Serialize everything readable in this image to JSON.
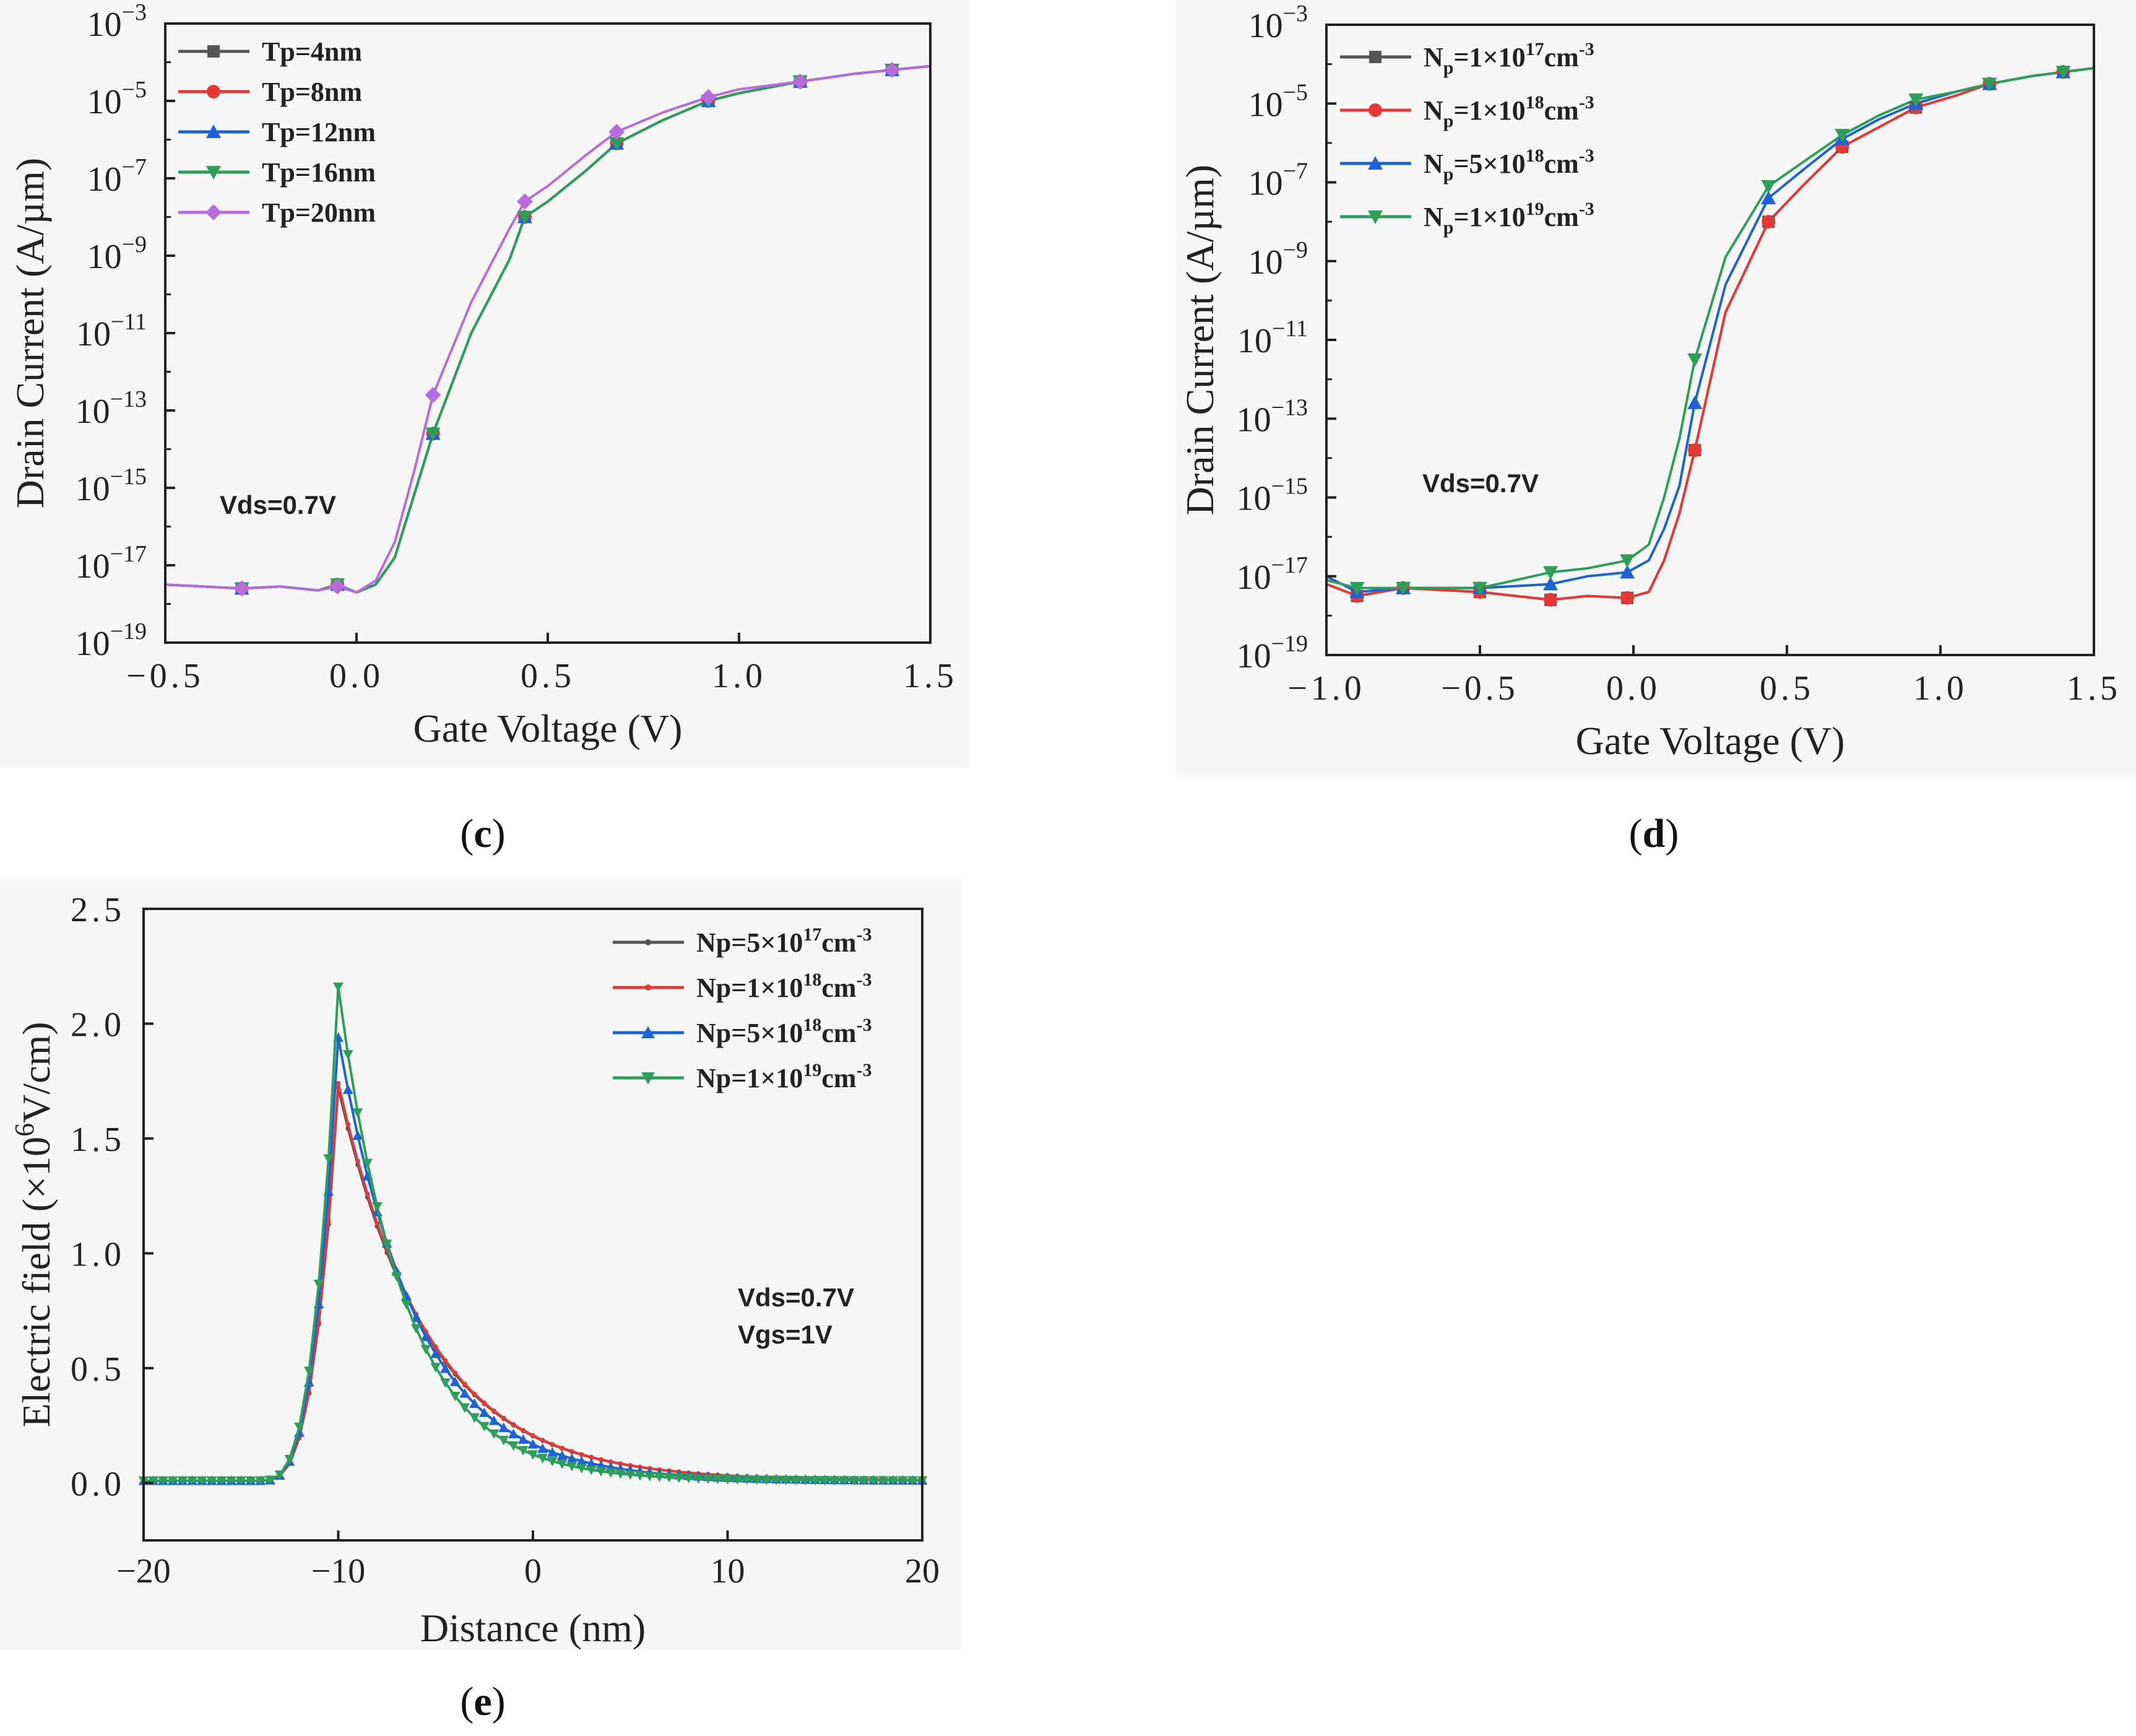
{
  "chart_data": [
    {
      "panel": "(c)",
      "panel_letter": "c",
      "type": "line",
      "yscale": "log",
      "xlabel": "Gate Voltage (V)",
      "ylabel": "Drain Current (A/µm)",
      "xlim": [
        -0.5,
        1.5
      ],
      "xticks": [
        "−0.5",
        "0.0",
        "0.5",
        "1.0",
        "1.5"
      ],
      "xtick_values": [
        -0.5,
        0.0,
        0.5,
        1.0,
        1.5
      ],
      "ylim_exp": [
        -19,
        -3
      ],
      "ytick_exponents": [
        "-19",
        "-17",
        "-15",
        "-13",
        "-11",
        "-9",
        "-7",
        "-5",
        "-3"
      ],
      "annotation": "Vds=0.7V",
      "legend_position": "top-left",
      "series": [
        {
          "name": "Tp=4nm",
          "color": "#555555",
          "marker": "square",
          "x": [
            -0.5,
            -0.4,
            -0.3,
            -0.2,
            -0.1,
            -0.05,
            0.0,
            0.05,
            0.1,
            0.15,
            0.2,
            0.3,
            0.4,
            0.44,
            0.5,
            0.6,
            0.68,
            0.8,
            0.92,
            1.0,
            1.16,
            1.3,
            1.4,
            1.5
          ],
          "y": [
            -17.5,
            -17.55,
            -17.6,
            -17.55,
            -17.65,
            -17.5,
            -17.7,
            -17.5,
            -16.8,
            -15.2,
            -13.6,
            -11.0,
            -9.1,
            -8.0,
            -7.6,
            -6.8,
            -6.1,
            -5.5,
            -5.0,
            -4.8,
            -4.5,
            -4.3,
            -4.2,
            -4.1
          ]
        },
        {
          "name": "Tp=8nm",
          "color": "#e53935",
          "marker": "circle",
          "x": [
            -0.5,
            -0.4,
            -0.3,
            -0.2,
            -0.1,
            -0.05,
            0.0,
            0.05,
            0.1,
            0.15,
            0.2,
            0.3,
            0.4,
            0.44,
            0.5,
            0.6,
            0.68,
            0.8,
            0.92,
            1.0,
            1.16,
            1.3,
            1.4,
            1.5
          ],
          "y": [
            -17.5,
            -17.55,
            -17.6,
            -17.55,
            -17.65,
            -17.5,
            -17.7,
            -17.5,
            -16.8,
            -15.2,
            -13.6,
            -11.0,
            -9.1,
            -8.0,
            -7.6,
            -6.8,
            -6.1,
            -5.5,
            -5.0,
            -4.8,
            -4.5,
            -4.3,
            -4.2,
            -4.1
          ]
        },
        {
          "name": "Tp=12nm",
          "color": "#1e63d6",
          "marker": "triangle-up",
          "x": [
            -0.5,
            -0.4,
            -0.3,
            -0.2,
            -0.1,
            -0.05,
            0.0,
            0.05,
            0.1,
            0.15,
            0.2,
            0.3,
            0.4,
            0.44,
            0.5,
            0.6,
            0.68,
            0.8,
            0.92,
            1.0,
            1.16,
            1.3,
            1.4,
            1.5
          ],
          "y": [
            -17.5,
            -17.55,
            -17.6,
            -17.55,
            -17.65,
            -17.5,
            -17.7,
            -17.5,
            -16.8,
            -15.2,
            -13.6,
            -11.0,
            -9.1,
            -8.0,
            -7.6,
            -6.8,
            -6.1,
            -5.5,
            -5.0,
            -4.8,
            -4.5,
            -4.3,
            -4.2,
            -4.1
          ]
        },
        {
          "name": "Tp=16nm",
          "color": "#2e9e5b",
          "marker": "triangle-down",
          "x": [
            -0.5,
            -0.4,
            -0.3,
            -0.2,
            -0.1,
            -0.05,
            0.0,
            0.05,
            0.1,
            0.15,
            0.2,
            0.3,
            0.4,
            0.44,
            0.5,
            0.6,
            0.68,
            0.8,
            0.92,
            1.0,
            1.16,
            1.3,
            1.4,
            1.5
          ],
          "y": [
            -17.5,
            -17.55,
            -17.6,
            -17.55,
            -17.65,
            -17.5,
            -17.7,
            -17.5,
            -16.8,
            -15.2,
            -13.6,
            -11.0,
            -9.1,
            -8.0,
            -7.6,
            -6.8,
            -6.1,
            -5.5,
            -5.0,
            -4.8,
            -4.5,
            -4.3,
            -4.2,
            -4.1
          ]
        },
        {
          "name": "Tp=20nm",
          "color": "#b86bdc",
          "marker": "diamond",
          "x": [
            -0.5,
            -0.4,
            -0.3,
            -0.2,
            -0.1,
            -0.05,
            0.0,
            0.05,
            0.1,
            0.15,
            0.2,
            0.3,
            0.4,
            0.44,
            0.5,
            0.6,
            0.68,
            0.8,
            0.92,
            1.0,
            1.16,
            1.3,
            1.4,
            1.5
          ],
          "y": [
            -17.5,
            -17.55,
            -17.6,
            -17.55,
            -17.65,
            -17.55,
            -17.7,
            -17.4,
            -16.4,
            -14.6,
            -12.6,
            -10.2,
            -8.3,
            -7.6,
            -7.2,
            -6.4,
            -5.8,
            -5.3,
            -4.9,
            -4.7,
            -4.5,
            -4.3,
            -4.2,
            -4.1
          ]
        }
      ]
    },
    {
      "panel": "(d)",
      "panel_letter": "d",
      "type": "line",
      "yscale": "log",
      "xlabel": "Gate Voltage (V)",
      "ylabel": "Drain Current (A/µm)",
      "xlim": [
        -1.0,
        1.5
      ],
      "xticks": [
        "−1.0",
        "−0.5",
        "0.0",
        "0.5",
        "1.0",
        "1.5"
      ],
      "xtick_values": [
        -1.0,
        -0.5,
        0.0,
        0.5,
        1.0,
        1.5
      ],
      "ylim_exp": [
        -19,
        -3
      ],
      "ytick_exponents": [
        "-19",
        "-17",
        "-15",
        "-13",
        "-11",
        "-9",
        "-7",
        "-5",
        "-3"
      ],
      "annotation": "Vds=0.7V",
      "legend_position": "top-left",
      "series": [
        {
          "name": "N",
          "sub": "p",
          "mid": "=1×10",
          "exp": "17",
          "tail": "cm",
          "tailexp": "-3",
          "color": "#555555",
          "marker": "square",
          "x": [
            -1.0,
            -0.9,
            -0.75,
            -0.5,
            -0.27,
            -0.15,
            -0.02,
            0.05,
            0.1,
            0.15,
            0.2,
            0.3,
            0.44,
            0.55,
            0.68,
            0.8,
            0.92,
            1.05,
            1.16,
            1.3,
            1.4,
            1.5
          ],
          "y": [
            -17.2,
            -17.5,
            -17.3,
            -17.4,
            -17.6,
            -17.5,
            -17.55,
            -17.4,
            -16.6,
            -15.4,
            -13.8,
            -10.3,
            -8.0,
            -7.1,
            -6.1,
            -5.6,
            -5.1,
            -4.8,
            -4.5,
            -4.3,
            -4.2,
            -4.1
          ]
        },
        {
          "name": "N",
          "sub": "p",
          "mid": "=1×10",
          "exp": "18",
          "tail": "cm",
          "tailexp": "-3",
          "color": "#e53935",
          "marker": "circle",
          "x": [
            -1.0,
            -0.9,
            -0.75,
            -0.5,
            -0.27,
            -0.15,
            -0.02,
            0.05,
            0.1,
            0.15,
            0.2,
            0.3,
            0.44,
            0.55,
            0.68,
            0.8,
            0.92,
            1.05,
            1.16,
            1.3,
            1.4,
            1.5
          ],
          "y": [
            -17.2,
            -17.5,
            -17.3,
            -17.4,
            -17.6,
            -17.5,
            -17.55,
            -17.4,
            -16.6,
            -15.4,
            -13.8,
            -10.3,
            -8.0,
            -7.1,
            -6.1,
            -5.6,
            -5.1,
            -4.8,
            -4.5,
            -4.3,
            -4.2,
            -4.1
          ]
        },
        {
          "name": "N",
          "sub": "p",
          "mid": "=5×10",
          "exp": "18",
          "tail": "cm",
          "tailexp": "-3",
          "color": "#1e63d6",
          "marker": "triangle-up",
          "x": [
            -1.0,
            -0.9,
            -0.75,
            -0.5,
            -0.27,
            -0.15,
            -0.02,
            0.05,
            0.1,
            0.15,
            0.2,
            0.3,
            0.44,
            0.55,
            0.68,
            0.8,
            0.92,
            1.05,
            1.16,
            1.3,
            1.4,
            1.5
          ],
          "y": [
            -17.0,
            -17.4,
            -17.3,
            -17.3,
            -17.2,
            -17.0,
            -16.9,
            -16.6,
            -15.8,
            -14.7,
            -12.6,
            -9.6,
            -7.4,
            -6.7,
            -5.9,
            -5.4,
            -5.0,
            -4.7,
            -4.5,
            -4.3,
            -4.2,
            -4.1
          ]
        },
        {
          "name": "N",
          "sub": "p",
          "mid": "=1×10",
          "exp": "19",
          "tail": "cm",
          "tailexp": "-3",
          "color": "#2e9e5b",
          "marker": "triangle-down",
          "x": [
            -1.0,
            -0.9,
            -0.75,
            -0.5,
            -0.27,
            -0.15,
            -0.02,
            0.05,
            0.1,
            0.15,
            0.2,
            0.3,
            0.44,
            0.55,
            0.68,
            0.8,
            0.92,
            1.05,
            1.16,
            1.3,
            1.4,
            1.5
          ],
          "y": [
            -17.1,
            -17.3,
            -17.3,
            -17.3,
            -16.9,
            -16.8,
            -16.6,
            -16.2,
            -15.0,
            -13.5,
            -11.5,
            -8.9,
            -7.1,
            -6.5,
            -5.8,
            -5.3,
            -4.9,
            -4.7,
            -4.5,
            -4.3,
            -4.2,
            -4.1
          ]
        }
      ]
    },
    {
      "panel": "(e)",
      "panel_letter": "e",
      "type": "line",
      "yscale": "linear",
      "xlabel": "Distance (nm)",
      "ylabel_parts": [
        "Electric field (×10",
        "6",
        "V/cm)"
      ],
      "xlim": [
        -20,
        20
      ],
      "xticks": [
        "−20",
        "−10",
        "0",
        "10",
        "20"
      ],
      "xtick_values": [
        -20,
        -10,
        0,
        10,
        20
      ],
      "ylim": [
        -0.25,
        2.5
      ],
      "yticks": [
        "0.0",
        "0.5",
        "1.0",
        "1.5",
        "2.0",
        "2.5"
      ],
      "ytick_values": [
        0.0,
        0.5,
        1.0,
        1.5,
        2.0,
        2.5
      ],
      "annotation": [
        "Vds=0.7V",
        "Vgs=1V"
      ],
      "legend_position": "top-right",
      "series": [
        {
          "name": "Np=5×10",
          "exp": "17",
          "tail": "cm",
          "tailexp": "-3",
          "color": "#555555",
          "marker": "dot",
          "peak": 1.72,
          "decay": 4.6
        },
        {
          "name": "Np=1×10",
          "exp": "18",
          "tail": "cm",
          "tailexp": "-3",
          "color": "#e53935",
          "marker": "dot",
          "peak": 1.74,
          "decay": 4.6
        },
        {
          "name": "Np=5×10",
          "exp": "18",
          "tail": "cm",
          "tailexp": "-3",
          "color": "#1e63d6",
          "marker": "triangle-up",
          "peak": 1.94,
          "decay": 4.0
        },
        {
          "name": "Np=1×10",
          "exp": "19",
          "tail": "cm",
          "tailexp": "-3",
          "color": "#2e9e5b",
          "marker": "triangle-down",
          "peak": 2.16,
          "decay": 3.4
        }
      ]
    }
  ]
}
